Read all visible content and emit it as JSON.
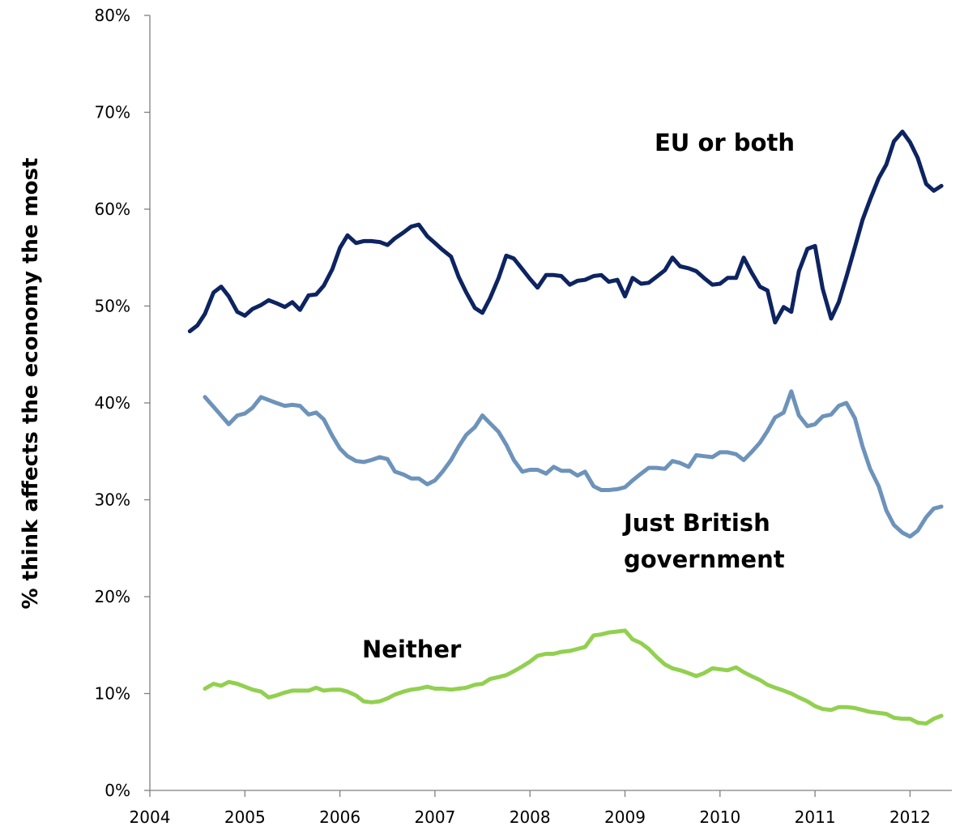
{
  "chart_data": {
    "type": "line",
    "title": "",
    "xlabel": "",
    "ylabel": "% think affects the economy the most",
    "xlim": [
      2004,
      2012.5
    ],
    "ylim": [
      0,
      80
    ],
    "x_ticks": [
      2004,
      2005,
      2006,
      2007,
      2008,
      2009,
      2010,
      2011,
      2012
    ],
    "y_ticks": [
      0,
      10,
      20,
      30,
      40,
      50,
      60,
      70,
      80
    ],
    "y_tick_format": "percent",
    "grid": false,
    "legend": "none (direct labels)",
    "series": [
      {
        "name": "EU or both",
        "color": "#0d2461",
        "x": [
          2004.42,
          2004.5,
          2004.58,
          2004.67,
          2004.75,
          2004.83,
          2004.92,
          2005.0,
          2005.08,
          2005.17,
          2005.25,
          2005.33,
          2005.42,
          2005.5,
          2005.58,
          2005.67,
          2005.75,
          2005.83,
          2005.92,
          2006.0,
          2006.08,
          2006.17,
          2006.25,
          2006.33,
          2006.42,
          2006.5,
          2006.58,
          2006.67,
          2006.75,
          2006.83,
          2006.92,
          2007.0,
          2007.08,
          2007.17,
          2007.25,
          2007.33,
          2007.42,
          2007.5,
          2007.58,
          2007.67,
          2007.75,
          2007.83,
          2007.92,
          2008.0,
          2008.08,
          2008.17,
          2008.25,
          2008.33,
          2008.42,
          2008.5,
          2008.58,
          2008.67,
          2008.75,
          2008.83,
          2008.92,
          2009.0,
          2009.08,
          2009.17,
          2009.25,
          2009.33,
          2009.42,
          2009.5,
          2009.58,
          2009.67,
          2009.75,
          2009.83,
          2009.92,
          2010.0,
          2010.08,
          2010.17,
          2010.25,
          2010.33,
          2010.42,
          2010.5,
          2010.58,
          2010.67,
          2010.75,
          2010.83,
          2010.92,
          2011.0,
          2011.08,
          2011.17,
          2011.25,
          2011.33,
          2011.42,
          2011.5,
          2011.58,
          2011.67,
          2011.75,
          2011.83,
          2011.92,
          2012.0,
          2012.08,
          2012.17,
          2012.25,
          2012.33
        ],
        "values": [
          47.4,
          48.0,
          49.2,
          51.4,
          52.0,
          51.0,
          49.4,
          49.0,
          49.7,
          50.1,
          50.6,
          50.3,
          49.9,
          50.4,
          49.6,
          51.1,
          51.2,
          52.1,
          53.8,
          56.0,
          57.3,
          56.5,
          56.7,
          56.7,
          56.6,
          56.3,
          57.0,
          57.6,
          58.2,
          58.4,
          57.2,
          56.5,
          55.8,
          55.1,
          53.0,
          51.4,
          49.8,
          49.3,
          50.8,
          52.9,
          55.2,
          54.9,
          53.8,
          52.8,
          51.9,
          53.2,
          53.2,
          53.1,
          52.2,
          52.6,
          52.7,
          53.1,
          53.2,
          52.5,
          52.7,
          51.0,
          52.9,
          52.3,
          52.4,
          53.0,
          53.7,
          55.0,
          54.1,
          53.9,
          53.6,
          52.9,
          52.2,
          52.3,
          52.9,
          52.9,
          55.0,
          53.5,
          52.0,
          51.6,
          48.3,
          49.9,
          49.4,
          53.6,
          55.9,
          56.2,
          51.8,
          48.7,
          50.4,
          53.0,
          56.1,
          58.9,
          61.0,
          63.2,
          64.6,
          67.0,
          68.0,
          66.9,
          65.3,
          62.6,
          61.9,
          62.4
        ]
      },
      {
        "name": "Just British government",
        "color": "#6d93ba",
        "x": [
          2004.58,
          2004.67,
          2004.75,
          2004.83,
          2004.92,
          2005.0,
          2005.08,
          2005.17,
          2005.25,
          2005.33,
          2005.42,
          2005.5,
          2005.58,
          2005.67,
          2005.75,
          2005.83,
          2005.92,
          2006.0,
          2006.08,
          2006.17,
          2006.25,
          2006.33,
          2006.42,
          2006.5,
          2006.58,
          2006.67,
          2006.75,
          2006.83,
          2006.92,
          2007.0,
          2007.08,
          2007.17,
          2007.25,
          2007.33,
          2007.42,
          2007.5,
          2007.58,
          2007.67,
          2007.75,
          2007.83,
          2007.92,
          2008.0,
          2008.08,
          2008.17,
          2008.25,
          2008.33,
          2008.42,
          2008.5,
          2008.58,
          2008.67,
          2008.75,
          2008.83,
          2008.92,
          2009.0,
          2009.08,
          2009.17,
          2009.25,
          2009.33,
          2009.42,
          2009.5,
          2009.58,
          2009.67,
          2009.75,
          2009.83,
          2009.92,
          2010.0,
          2010.08,
          2010.17,
          2010.25,
          2010.33,
          2010.42,
          2010.5,
          2010.58,
          2010.67,
          2010.75,
          2010.83,
          2010.92,
          2011.0,
          2011.08,
          2011.17,
          2011.25,
          2011.33,
          2011.42,
          2011.5,
          2011.58,
          2011.67,
          2011.75,
          2011.83,
          2011.92,
          2012.0,
          2012.08,
          2012.17,
          2012.25,
          2012.33
        ],
        "values": [
          40.6,
          39.6,
          38.7,
          37.8,
          38.7,
          38.9,
          39.5,
          40.6,
          40.3,
          40.0,
          39.7,
          39.8,
          39.7,
          38.8,
          39.0,
          38.3,
          36.6,
          35.3,
          34.5,
          34.0,
          33.9,
          34.1,
          34.4,
          34.2,
          32.9,
          32.6,
          32.2,
          32.2,
          31.6,
          32.0,
          32.9,
          34.1,
          35.5,
          36.7,
          37.5,
          38.7,
          37.9,
          37.0,
          35.7,
          34.1,
          32.9,
          33.1,
          33.1,
          32.7,
          33.4,
          33.0,
          33.0,
          32.5,
          32.9,
          31.4,
          31.0,
          31.0,
          31.1,
          31.3,
          32.0,
          32.7,
          33.3,
          33.3,
          33.2,
          34.0,
          33.8,
          33.4,
          34.6,
          34.5,
          34.4,
          34.9,
          34.9,
          34.7,
          34.1,
          34.9,
          35.9,
          37.1,
          38.5,
          39.0,
          41.2,
          38.7,
          37.6,
          37.8,
          38.6,
          38.8,
          39.7,
          40.0,
          38.4,
          35.5,
          33.2,
          31.4,
          28.9,
          27.4,
          26.6,
          26.2,
          26.8,
          28.2,
          29.1,
          29.3
        ]
      },
      {
        "name": "Neither",
        "color": "#92d050",
        "x": [
          2004.58,
          2004.67,
          2004.75,
          2004.83,
          2004.92,
          2005.0,
          2005.08,
          2005.17,
          2005.25,
          2005.33,
          2005.42,
          2005.5,
          2005.58,
          2005.67,
          2005.75,
          2005.83,
          2005.92,
          2006.0,
          2006.08,
          2006.17,
          2006.25,
          2006.33,
          2006.42,
          2006.5,
          2006.58,
          2006.67,
          2006.75,
          2006.83,
          2006.92,
          2007.0,
          2007.08,
          2007.17,
          2007.25,
          2007.33,
          2007.42,
          2007.5,
          2007.58,
          2007.67,
          2007.75,
          2007.83,
          2007.92,
          2008.0,
          2008.08,
          2008.17,
          2008.25,
          2008.33,
          2008.42,
          2008.5,
          2008.58,
          2008.67,
          2008.75,
          2008.83,
          2008.92,
          2009.0,
          2009.08,
          2009.17,
          2009.25,
          2009.33,
          2009.42,
          2009.5,
          2009.58,
          2009.67,
          2009.75,
          2009.83,
          2009.92,
          2010.0,
          2010.08,
          2010.17,
          2010.25,
          2010.33,
          2010.42,
          2010.5,
          2010.58,
          2010.67,
          2010.75,
          2010.83,
          2010.92,
          2011.0,
          2011.08,
          2011.17,
          2011.25,
          2011.33,
          2011.42,
          2011.5,
          2011.58,
          2011.67,
          2011.75,
          2011.83,
          2011.92,
          2012.0,
          2012.08,
          2012.17,
          2012.25,
          2012.33
        ],
        "values": [
          10.5,
          11.0,
          10.8,
          11.2,
          11.0,
          10.7,
          10.4,
          10.2,
          9.6,
          9.8,
          10.1,
          10.3,
          10.3,
          10.3,
          10.6,
          10.3,
          10.4,
          10.4,
          10.2,
          9.8,
          9.2,
          9.1,
          9.2,
          9.5,
          9.9,
          10.2,
          10.4,
          10.5,
          10.7,
          10.5,
          10.5,
          10.4,
          10.5,
          10.6,
          10.9,
          11.0,
          11.5,
          11.7,
          11.9,
          12.3,
          12.8,
          13.3,
          13.9,
          14.1,
          14.1,
          14.3,
          14.4,
          14.6,
          14.8,
          16.0,
          16.1,
          16.3,
          16.4,
          16.5,
          15.6,
          15.2,
          14.6,
          13.8,
          13.0,
          12.6,
          12.4,
          12.1,
          11.8,
          12.1,
          12.6,
          12.5,
          12.4,
          12.7,
          12.2,
          11.8,
          11.4,
          10.9,
          10.6,
          10.3,
          10.0,
          9.6,
          9.2,
          8.7,
          8.4,
          8.3,
          8.6,
          8.6,
          8.5,
          8.3,
          8.1,
          8.0,
          7.9,
          7.5,
          7.4,
          7.4,
          7.0,
          6.9,
          7.4,
          7.7
        ]
      }
    ],
    "annotations": [
      {
        "series": "EU or both",
        "lines": [
          "EU or both"
        ]
      },
      {
        "series": "Just British government",
        "lines": [
          "Just British",
          "government"
        ]
      },
      {
        "series": "Neither",
        "lines": [
          "Neither"
        ]
      }
    ]
  }
}
